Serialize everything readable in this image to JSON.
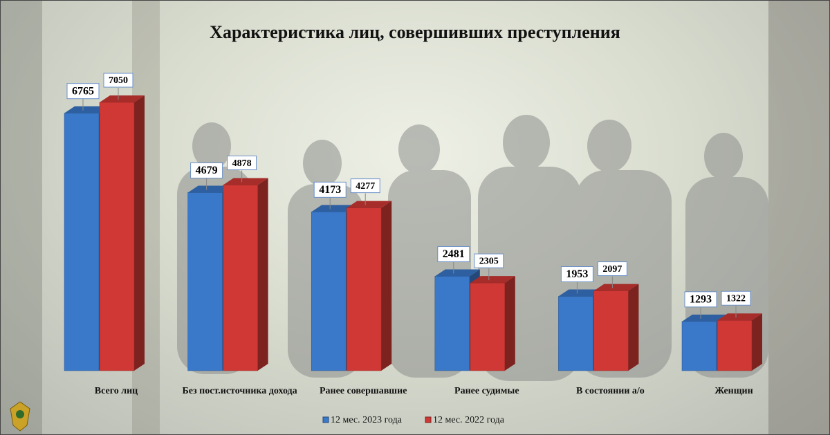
{
  "chart_data": {
    "type": "bar3d",
    "title": "Характеристика лиц, совершивших преступления",
    "categories": [
      "Всего лиц",
      "Без пост.источника дохода",
      "Ранее совершавшие",
      "Ранее судимые",
      "В состоянии а/о",
      "Женщин"
    ],
    "series": [
      {
        "name": "12 мес. 2023 года",
        "color": "#3a78c9",
        "values": [
          6765,
          4679,
          4173,
          2481,
          1953,
          1293
        ]
      },
      {
        "name": "12 мес. 2022 года",
        "color": "#cf3834",
        "values": [
          7050,
          4878,
          4277,
          2305,
          2097,
          1322
        ]
      }
    ]
  }
}
